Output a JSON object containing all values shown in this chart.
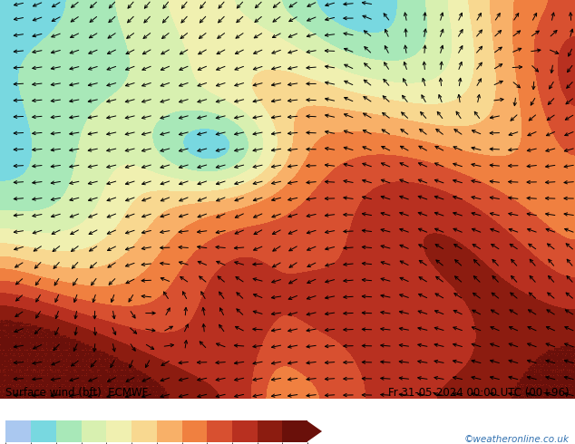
{
  "title_left": "Surface wind (bft)  ECMWF",
  "title_right": "Fr 31-05-2024 00:00 UTC (00+96)",
  "watermark": "©weatheronline.co.uk",
  "colorbar_colors": [
    "#aac8f0",
    "#78d8e0",
    "#a8e8b8",
    "#d8f0b0",
    "#f0f0b0",
    "#f8d890",
    "#f8b068",
    "#f08040",
    "#d85030",
    "#b83020",
    "#8c1c10",
    "#6a100a"
  ],
  "background_color": "#ffffff",
  "fig_width": 6.34,
  "fig_height": 4.9,
  "dpi": 100
}
